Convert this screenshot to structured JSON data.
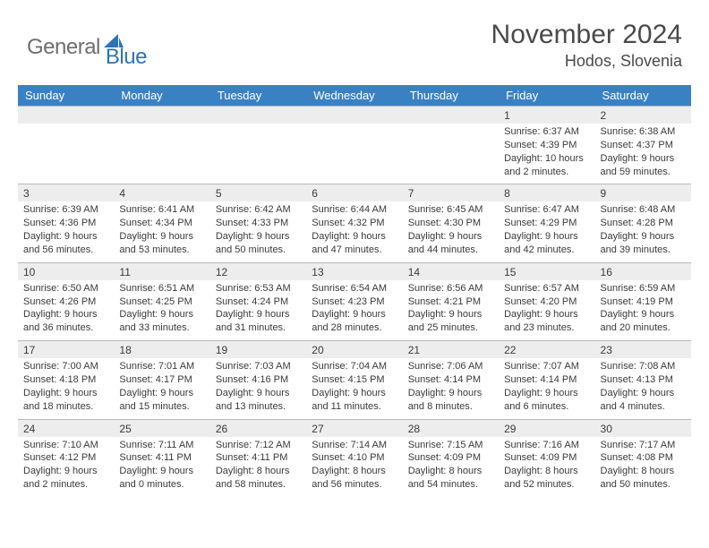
{
  "brand": {
    "general": "General",
    "blue": "Blue"
  },
  "title": "November 2024",
  "location": "Hodos, Slovenia",
  "colors": {
    "header_bg": "#3a81c4",
    "header_text": "#ffffff",
    "daynum_bg": "#ededed",
    "border": "#b8b8b8",
    "text": "#3a3a3a",
    "logo_gray": "#6e6e6e",
    "logo_blue": "#2e72b8"
  },
  "dayNames": [
    "Sunday",
    "Monday",
    "Tuesday",
    "Wednesday",
    "Thursday",
    "Friday",
    "Saturday"
  ],
  "firstDayOffset": 5,
  "daysInMonth": 30,
  "days": {
    "1": {
      "sunrise": "6:37 AM",
      "sunset": "4:39 PM",
      "daylight": "10 hours and 2 minutes."
    },
    "2": {
      "sunrise": "6:38 AM",
      "sunset": "4:37 PM",
      "daylight": "9 hours and 59 minutes."
    },
    "3": {
      "sunrise": "6:39 AM",
      "sunset": "4:36 PM",
      "daylight": "9 hours and 56 minutes."
    },
    "4": {
      "sunrise": "6:41 AM",
      "sunset": "4:34 PM",
      "daylight": "9 hours and 53 minutes."
    },
    "5": {
      "sunrise": "6:42 AM",
      "sunset": "4:33 PM",
      "daylight": "9 hours and 50 minutes."
    },
    "6": {
      "sunrise": "6:44 AM",
      "sunset": "4:32 PM",
      "daylight": "9 hours and 47 minutes."
    },
    "7": {
      "sunrise": "6:45 AM",
      "sunset": "4:30 PM",
      "daylight": "9 hours and 44 minutes."
    },
    "8": {
      "sunrise": "6:47 AM",
      "sunset": "4:29 PM",
      "daylight": "9 hours and 42 minutes."
    },
    "9": {
      "sunrise": "6:48 AM",
      "sunset": "4:28 PM",
      "daylight": "9 hours and 39 minutes."
    },
    "10": {
      "sunrise": "6:50 AM",
      "sunset": "4:26 PM",
      "daylight": "9 hours and 36 minutes."
    },
    "11": {
      "sunrise": "6:51 AM",
      "sunset": "4:25 PM",
      "daylight": "9 hours and 33 minutes."
    },
    "12": {
      "sunrise": "6:53 AM",
      "sunset": "4:24 PM",
      "daylight": "9 hours and 31 minutes."
    },
    "13": {
      "sunrise": "6:54 AM",
      "sunset": "4:23 PM",
      "daylight": "9 hours and 28 minutes."
    },
    "14": {
      "sunrise": "6:56 AM",
      "sunset": "4:21 PM",
      "daylight": "9 hours and 25 minutes."
    },
    "15": {
      "sunrise": "6:57 AM",
      "sunset": "4:20 PM",
      "daylight": "9 hours and 23 minutes."
    },
    "16": {
      "sunrise": "6:59 AM",
      "sunset": "4:19 PM",
      "daylight": "9 hours and 20 minutes."
    },
    "17": {
      "sunrise": "7:00 AM",
      "sunset": "4:18 PM",
      "daylight": "9 hours and 18 minutes."
    },
    "18": {
      "sunrise": "7:01 AM",
      "sunset": "4:17 PM",
      "daylight": "9 hours and 15 minutes."
    },
    "19": {
      "sunrise": "7:03 AM",
      "sunset": "4:16 PM",
      "daylight": "9 hours and 13 minutes."
    },
    "20": {
      "sunrise": "7:04 AM",
      "sunset": "4:15 PM",
      "daylight": "9 hours and 11 minutes."
    },
    "21": {
      "sunrise": "7:06 AM",
      "sunset": "4:14 PM",
      "daylight": "9 hours and 8 minutes."
    },
    "22": {
      "sunrise": "7:07 AM",
      "sunset": "4:14 PM",
      "daylight": "9 hours and 6 minutes."
    },
    "23": {
      "sunrise": "7:08 AM",
      "sunset": "4:13 PM",
      "daylight": "9 hours and 4 minutes."
    },
    "24": {
      "sunrise": "7:10 AM",
      "sunset": "4:12 PM",
      "daylight": "9 hours and 2 minutes."
    },
    "25": {
      "sunrise": "7:11 AM",
      "sunset": "4:11 PM",
      "daylight": "9 hours and 0 minutes."
    },
    "26": {
      "sunrise": "7:12 AM",
      "sunset": "4:11 PM",
      "daylight": "8 hours and 58 minutes."
    },
    "27": {
      "sunrise": "7:14 AM",
      "sunset": "4:10 PM",
      "daylight": "8 hours and 56 minutes."
    },
    "28": {
      "sunrise": "7:15 AM",
      "sunset": "4:09 PM",
      "daylight": "8 hours and 54 minutes."
    },
    "29": {
      "sunrise": "7:16 AM",
      "sunset": "4:09 PM",
      "daylight": "8 hours and 52 minutes."
    },
    "30": {
      "sunrise": "7:17 AM",
      "sunset": "4:08 PM",
      "daylight": "8 hours and 50 minutes."
    }
  },
  "labels": {
    "sunrise": "Sunrise:",
    "sunset": "Sunset:",
    "daylight": "Daylight:"
  }
}
